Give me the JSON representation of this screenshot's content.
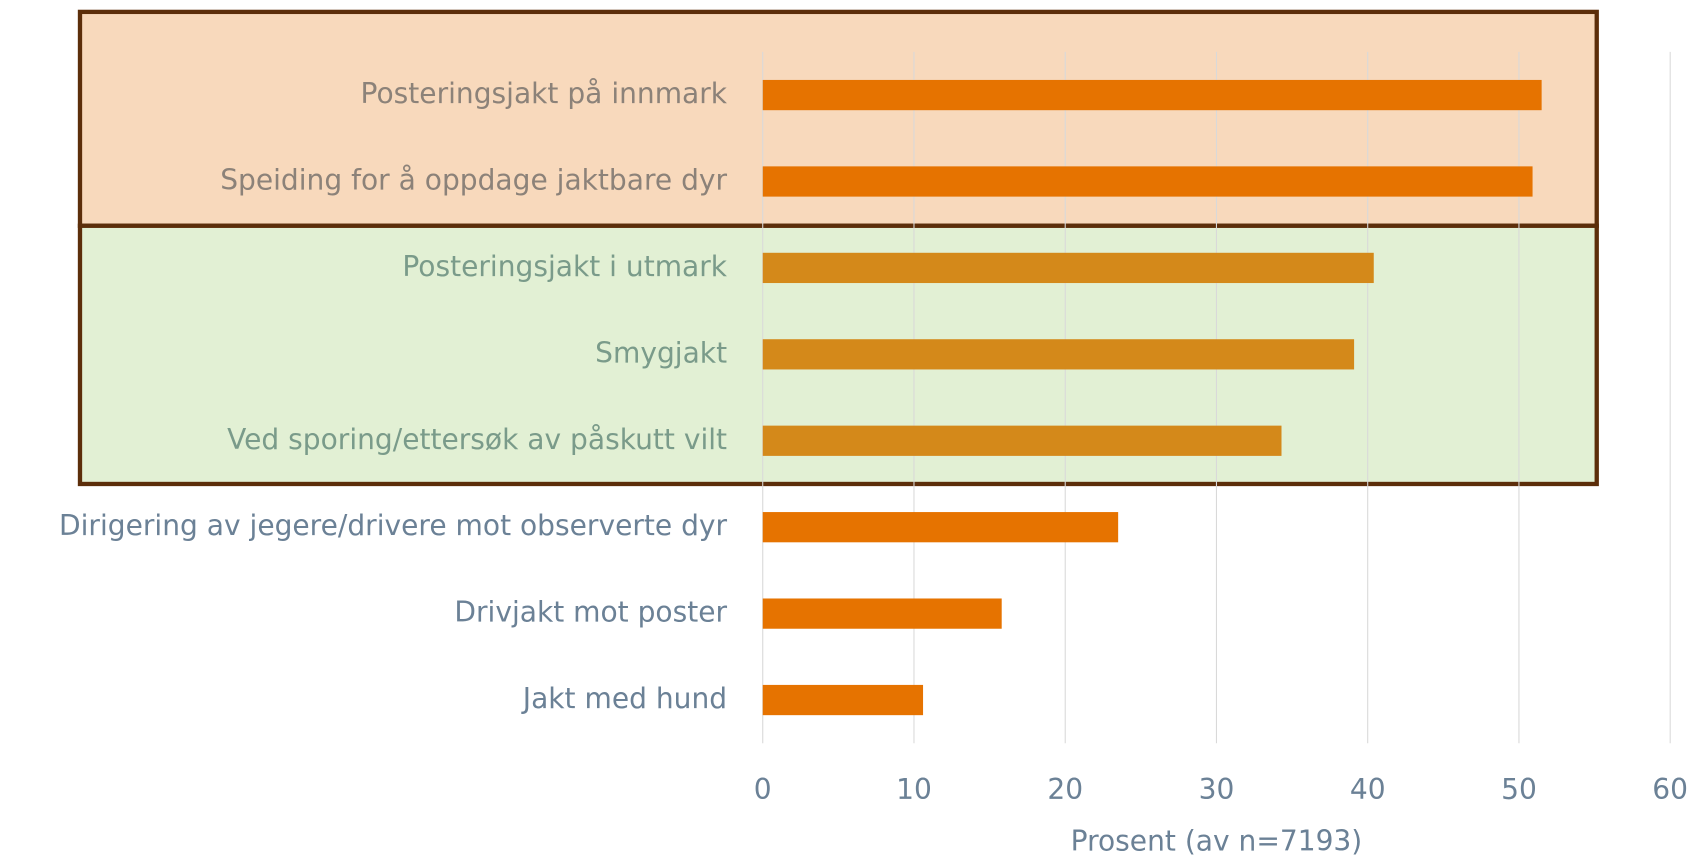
{
  "chart_data": {
    "type": "barh",
    "x_label": "Prosent (av n=7193)",
    "categories": [
      "Posteringsjakt på innmark",
      "Speiding for å oppdage jaktbare dyr",
      "Posteringsjakt i utmark",
      "Smygjakt",
      "Ved sporing/ettersøk av påskutt vilt",
      "Dirigering av jegere/drivere mot observerte dyr",
      "Drivjakt mot poster",
      "Jakt med hund"
    ],
    "values": [
      51.5,
      50.9,
      40.4,
      39.1,
      34.3,
      23.5,
      15.8,
      10.6
    ],
    "bar_colors": [
      "#e67300",
      "#e67300",
      "#d4891a",
      "#d4891a",
      "#d4891a",
      "#e67300",
      "#e67300",
      "#e67300"
    ],
    "label_colors": [
      "#8c8279",
      "#8c8279",
      "#7a9b8a",
      "#7a9b8a",
      "#7a9b8a",
      "#6b8196",
      "#6b8196",
      "#6b8196"
    ],
    "xlim": [
      0,
      60
    ],
    "xticks": [
      0,
      10,
      20,
      30,
      40,
      50,
      60
    ],
    "grid": true
  }
}
